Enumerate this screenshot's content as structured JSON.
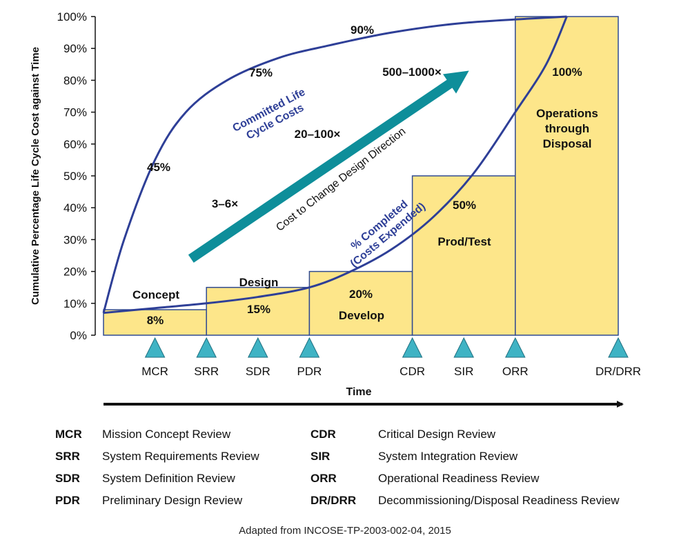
{
  "colors": {
    "bar_fill": "#FDE68A",
    "bar_stroke": "#2F4A92",
    "curve": "#2E3F97",
    "arrow": "#0E8E9A",
    "milestone": "#3FB3C4",
    "text": "#111111"
  },
  "chart_data": {
    "type": "bar",
    "title": "",
    "ylabel": "Cumulative Percentage Life Cycle Cost against Time",
    "xlabel": "Time",
    "ylim": [
      0,
      100
    ],
    "yticks": [
      "0%",
      "10%",
      "20%",
      "30%",
      "40%",
      "50%",
      "60%",
      "70%",
      "80%",
      "90%",
      "100%"
    ],
    "phases": [
      {
        "name": "Concept",
        "value": 8,
        "value_label": "8%",
        "x_start": 0,
        "x_end": 10
      },
      {
        "name": "Design",
        "value": 15,
        "value_label": "15%",
        "x_start": 10,
        "x_end": 20
      },
      {
        "name": "Develop",
        "value": 20,
        "value_label": "20%",
        "x_start": 20,
        "x_end": 30
      },
      {
        "name": "Prod/Test",
        "value": 50,
        "value_label": "50%",
        "x_start": 30,
        "x_end": 40
      },
      {
        "name": "Operations through Disposal",
        "name_lines": [
          "Operations",
          "through",
          "Disposal"
        ],
        "value": 100,
        "value_label": "100%",
        "x_start": 40,
        "x_end": 50
      }
    ],
    "milestones": [
      {
        "label": "MCR",
        "x": 5
      },
      {
        "label": "SRR",
        "x": 10
      },
      {
        "label": "SDR",
        "x": 15
      },
      {
        "label": "PDR",
        "x": 20
      },
      {
        "label": "CDR",
        "x": 30
      },
      {
        "label": "SIR",
        "x": 35
      },
      {
        "label": "ORR",
        "x": 40
      },
      {
        "label": "DR/DRR",
        "x": 50
      }
    ],
    "committed_curve": {
      "name_lines": [
        "Committed Life",
        "Cycle Costs"
      ],
      "points": [
        [
          0,
          7
        ],
        [
          2,
          30
        ],
        [
          5,
          55
        ],
        [
          8,
          70
        ],
        [
          12,
          80
        ],
        [
          17,
          87
        ],
        [
          22,
          91
        ],
        [
          28,
          95
        ],
        [
          35,
          98
        ],
        [
          45,
          100
        ]
      ],
      "annotations": [
        {
          "label": "45%",
          "x": 5,
          "y": 53
        },
        {
          "label": "75%",
          "x": 15,
          "y": 81
        },
        {
          "label": "90%",
          "x": 25,
          "y": 95
        }
      ]
    },
    "completed_curve": {
      "name_lines": [
        "% Completed",
        "(Costs Expended)"
      ],
      "points": [
        [
          0,
          7
        ],
        [
          5,
          8.5
        ],
        [
          10,
          10
        ],
        [
          15,
          12
        ],
        [
          20,
          15
        ],
        [
          24,
          20
        ],
        [
          28,
          27
        ],
        [
          32,
          37
        ],
        [
          36,
          51
        ],
        [
          40,
          70
        ],
        [
          43,
          85
        ],
        [
          45,
          100
        ]
      ]
    },
    "cost_to_change": {
      "label": "Cost to Change Design Direction",
      "start": [
        8.5,
        24
      ],
      "end": [
        35.5,
        83
      ],
      "annotations": [
        {
          "label": "3–6×",
          "x": 11.5,
          "y": 40.5
        },
        {
          "label": "20–100×",
          "x": 20.5,
          "y": 62.5
        },
        {
          "label": "500–1000×",
          "x": 29.5,
          "y": 82.5
        }
      ]
    }
  },
  "legend": [
    {
      "abbr": "MCR",
      "desc": "Mission Concept Review"
    },
    {
      "abbr": "SRR",
      "desc": "System Requirements Review"
    },
    {
      "abbr": "SDR",
      "desc": "System Definition Review"
    },
    {
      "abbr": "PDR",
      "desc": "Preliminary Design Review"
    },
    {
      "abbr": "CDR",
      "desc": "Critical Design Review"
    },
    {
      "abbr": "SIR",
      "desc": "System Integration Review"
    },
    {
      "abbr": "ORR",
      "desc": "Operational Readiness Review"
    },
    {
      "abbr": "DR/DRR",
      "desc": "Decommissioning/Disposal Readiness Review"
    }
  ],
  "source": "Adapted from INCOSE-TP-2003-002-04, 2015"
}
